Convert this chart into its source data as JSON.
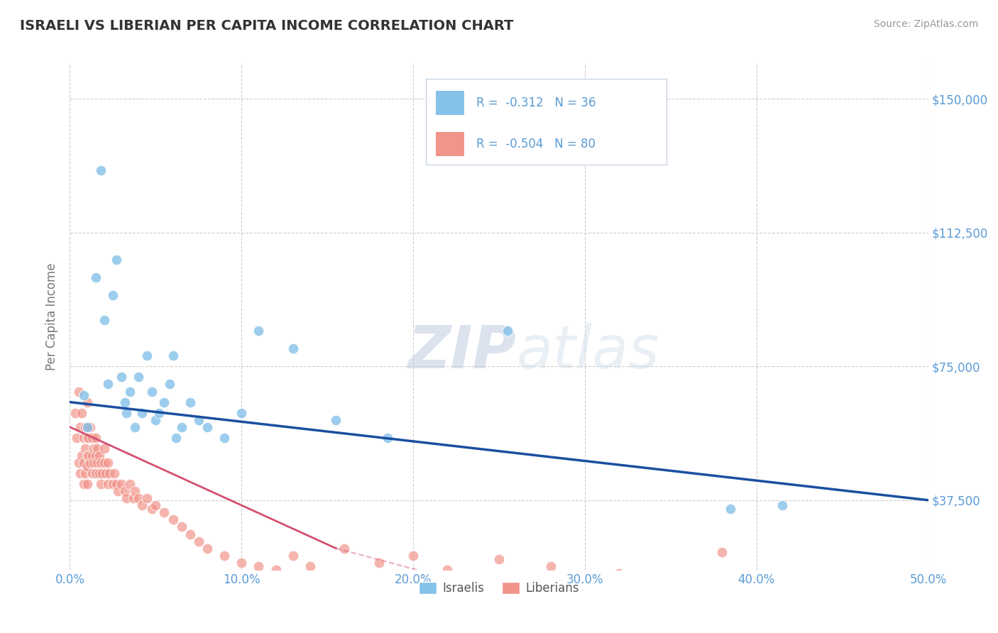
{
  "title": "ISRAELI VS LIBERIAN PER CAPITA INCOME CORRELATION CHART",
  "source_text": "Source: ZipAtlas.com",
  "ylabel": "Per Capita Income",
  "xlim": [
    0.0,
    0.5
  ],
  "ylim": [
    18000,
    160000
  ],
  "yticks": [
    37500,
    75000,
    112500,
    150000
  ],
  "ytick_labels": [
    "$37,500",
    "$75,000",
    "$112,500",
    "$150,000"
  ],
  "xticks": [
    0.0,
    0.1,
    0.2,
    0.3,
    0.4,
    0.5
  ],
  "xtick_labels": [
    "0.0%",
    "10.0%",
    "20.0%",
    "30.0%",
    "40.0%",
    "50.0%"
  ],
  "israeli_color": "#85C1E9",
  "liberian_color": "#F1948A",
  "trend_israeli_color": "#1A4FA0",
  "trend_liberian_color": "#D45070",
  "legend_R_israeli": "-0.312",
  "legend_N_israeli": "36",
  "legend_R_liberian": "-0.504",
  "legend_N_liberian": "80",
  "watermark_zip": "ZIP",
  "watermark_atlas": "atlas",
  "background_color": "#FFFFFF",
  "axis_color": "#5B9BD5",
  "grid_color": "#CCCCCC",
  "title_color": "#333333",
  "source_color": "#999999",
  "ylabel_color": "#777777",
  "israeli_x": [
    0.008,
    0.01,
    0.015,
    0.018,
    0.02,
    0.022,
    0.025,
    0.027,
    0.03,
    0.032,
    0.033,
    0.035,
    0.038,
    0.04,
    0.042,
    0.045,
    0.048,
    0.05,
    0.052,
    0.055,
    0.058,
    0.06,
    0.062,
    0.065,
    0.07,
    0.075,
    0.08,
    0.09,
    0.1,
    0.11,
    0.13,
    0.155,
    0.185,
    0.255,
    0.385,
    0.415
  ],
  "israeli_y": [
    67000,
    58000,
    100000,
    130000,
    88000,
    70000,
    95000,
    105000,
    72000,
    65000,
    62000,
    68000,
    58000,
    72000,
    62000,
    78000,
    68000,
    60000,
    62000,
    65000,
    70000,
    78000,
    55000,
    58000,
    65000,
    60000,
    58000,
    55000,
    62000,
    85000,
    80000,
    60000,
    55000,
    85000,
    35000,
    36000
  ],
  "liberian_x": [
    0.003,
    0.004,
    0.005,
    0.005,
    0.006,
    0.006,
    0.007,
    0.007,
    0.008,
    0.008,
    0.008,
    0.009,
    0.009,
    0.009,
    0.01,
    0.01,
    0.01,
    0.01,
    0.01,
    0.01,
    0.011,
    0.011,
    0.012,
    0.012,
    0.013,
    0.013,
    0.013,
    0.014,
    0.014,
    0.015,
    0.015,
    0.015,
    0.016,
    0.016,
    0.017,
    0.017,
    0.018,
    0.018,
    0.019,
    0.02,
    0.02,
    0.021,
    0.022,
    0.022,
    0.023,
    0.025,
    0.026,
    0.027,
    0.028,
    0.03,
    0.032,
    0.033,
    0.035,
    0.037,
    0.038,
    0.04,
    0.042,
    0.045,
    0.048,
    0.05,
    0.055,
    0.06,
    0.065,
    0.07,
    0.075,
    0.08,
    0.09,
    0.1,
    0.11,
    0.12,
    0.13,
    0.14,
    0.16,
    0.18,
    0.2,
    0.22,
    0.25,
    0.28,
    0.32,
    0.38
  ],
  "liberian_y": [
    62000,
    55000,
    68000,
    48000,
    58000,
    45000,
    62000,
    50000,
    55000,
    48000,
    42000,
    58000,
    52000,
    45000,
    65000,
    58000,
    55000,
    50000,
    47000,
    42000,
    55000,
    50000,
    58000,
    48000,
    55000,
    50000,
    45000,
    52000,
    48000,
    55000,
    50000,
    45000,
    52000,
    48000,
    50000,
    45000,
    48000,
    42000,
    45000,
    52000,
    48000,
    45000,
    48000,
    42000,
    45000,
    42000,
    45000,
    42000,
    40000,
    42000,
    40000,
    38000,
    42000,
    38000,
    40000,
    38000,
    36000,
    38000,
    35000,
    36000,
    34000,
    32000,
    30000,
    28000,
    26000,
    24000,
    22000,
    20000,
    19000,
    18000,
    22000,
    19000,
    24000,
    20000,
    22000,
    18000,
    21000,
    19000,
    17000,
    23000
  ]
}
